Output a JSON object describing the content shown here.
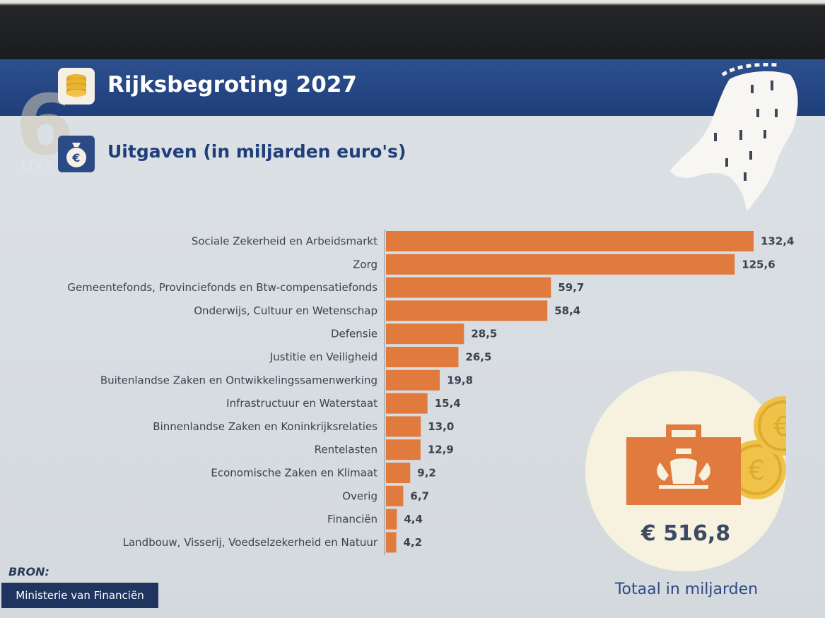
{
  "header": {
    "title": "Rijksbegroting 2027",
    "subtitle": "Uitgaven (in miljarden euro's)"
  },
  "channel": {
    "logo_number": "6",
    "logo_text": "LIVE"
  },
  "chart_data": {
    "type": "bar",
    "orientation": "horizontal",
    "title": "Rijksbegroting 2027",
    "subtitle": "Uitgaven (in miljarden euro's)",
    "categories": [
      "Sociale Zekerheid en Arbeidsmarkt",
      "Zorg",
      "Gemeentefonds, Provinciefonds en Btw-compensatiefonds",
      "Onderwijs, Cultuur en Wetenschap",
      "Defensie",
      "Justitie en Veiligheid",
      "Buitenlandse Zaken en Ontwikkelingssamenwerking",
      "Infrastructuur en Waterstaat",
      "Binnenlandse Zaken en Koninkrijksrelaties",
      "Rentelasten",
      "Economische Zaken en Klimaat",
      "Overig",
      "Financiën",
      "Landbouw, Visserij, Voedselzekerheid en Natuur"
    ],
    "values": [
      132.4,
      125.6,
      59.7,
      58.4,
      28.5,
      26.5,
      19.8,
      15.4,
      13.0,
      12.9,
      9.2,
      6.7,
      4.4,
      4.2
    ],
    "value_labels": [
      "132,4",
      "125,6",
      "59,7",
      "58,4",
      "28,5",
      "26,5",
      "19,8",
      "15,4",
      "13,0",
      "12,9",
      "9,2",
      "6,7",
      "4,4",
      "4,2"
    ],
    "xlim": [
      0,
      132.4
    ],
    "grid": false,
    "legend": "none",
    "bar_color": "#e07a3d"
  },
  "total": {
    "value": "€ 516,8",
    "caption": "Totaal in miljarden"
  },
  "source": {
    "label": "BRON:",
    "value": "Ministerie van Financiën"
  },
  "colors": {
    "header_blue": "#1f3f7a",
    "bar_orange": "#e07a3d",
    "coin_gold": "#f0c24a",
    "circle_cream": "#f7f1df"
  }
}
